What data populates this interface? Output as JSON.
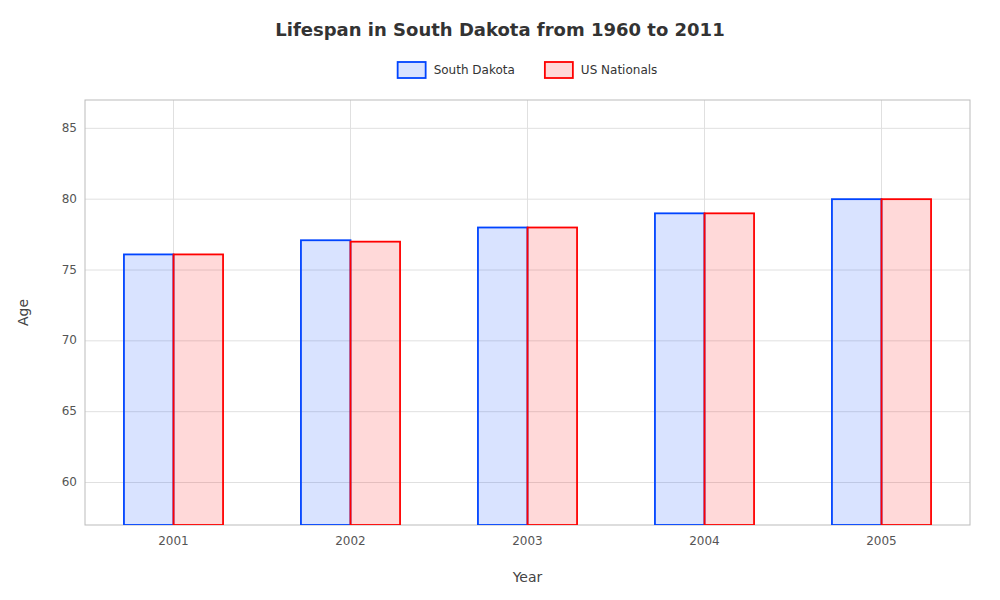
{
  "chart_data": {
    "type": "bar",
    "title": "Lifespan in South Dakota from 1960 to 2011",
    "x_label": "Year",
    "y_label": "Age",
    "categories": [
      "2001",
      "2002",
      "2003",
      "2004",
      "2005"
    ],
    "series": [
      {
        "name": "South Dakota",
        "color": "#0044ff",
        "values": [
          76.1,
          77.1,
          78.0,
          79.0,
          80.0
        ]
      },
      {
        "name": "US Nationals",
        "color": "#ff0000",
        "values": [
          76.1,
          77.0,
          78.0,
          79.0,
          80.0
        ]
      }
    ],
    "ylim": [
      57,
      87
    ],
    "yticks": [
      60,
      65,
      70,
      75,
      80,
      85
    ],
    "grid": true,
    "legend": "top"
  }
}
